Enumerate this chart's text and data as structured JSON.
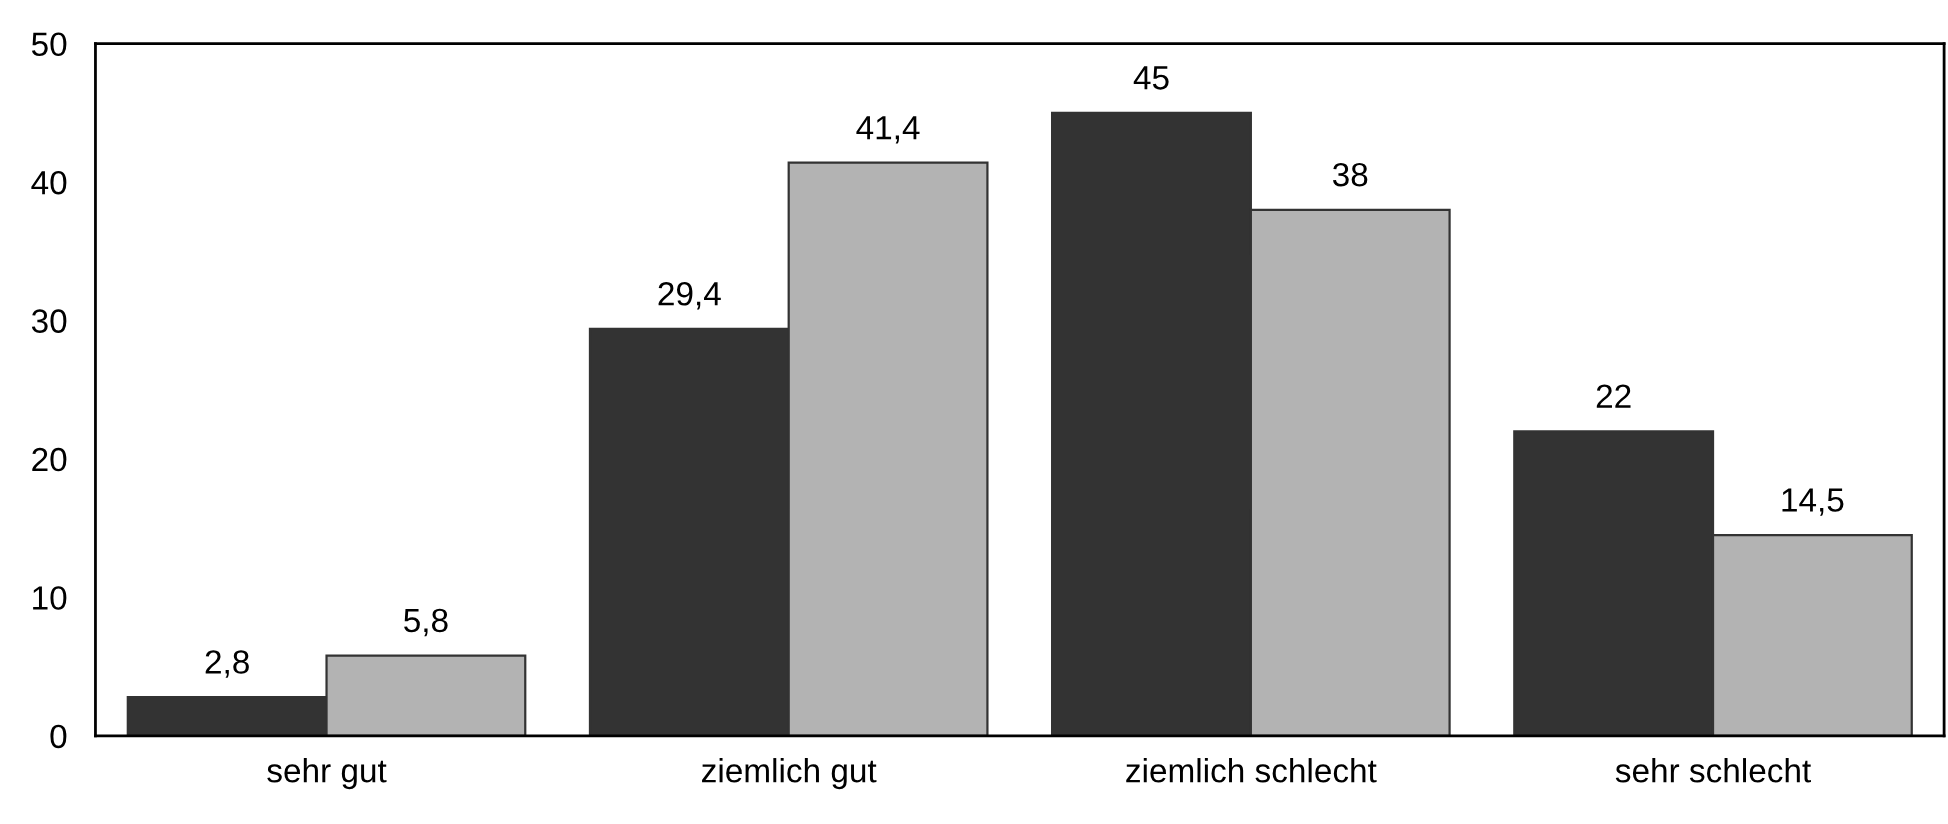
{
  "chart_data": {
    "type": "bar",
    "categories": [
      "sehr gut",
      "ziemlich gut",
      "ziemlich schlecht",
      "sehr schlecht"
    ],
    "series": [
      {
        "color": "#333333",
        "values": [
          2.8,
          29.4,
          45,
          22
        ],
        "value_labels": [
          "2,8",
          "29,4",
          "45",
          "22"
        ]
      },
      {
        "color": "#b3b3b3",
        "values": [
          5.8,
          41.4,
          38,
          14.5
        ],
        "value_labels": [
          "5,8",
          "41,4",
          "38",
          "14,5"
        ]
      }
    ],
    "ylim": [
      0,
      50
    ],
    "yticks": [
      0,
      10,
      20,
      30,
      40,
      50
    ],
    "grid": false,
    "legend": false
  }
}
